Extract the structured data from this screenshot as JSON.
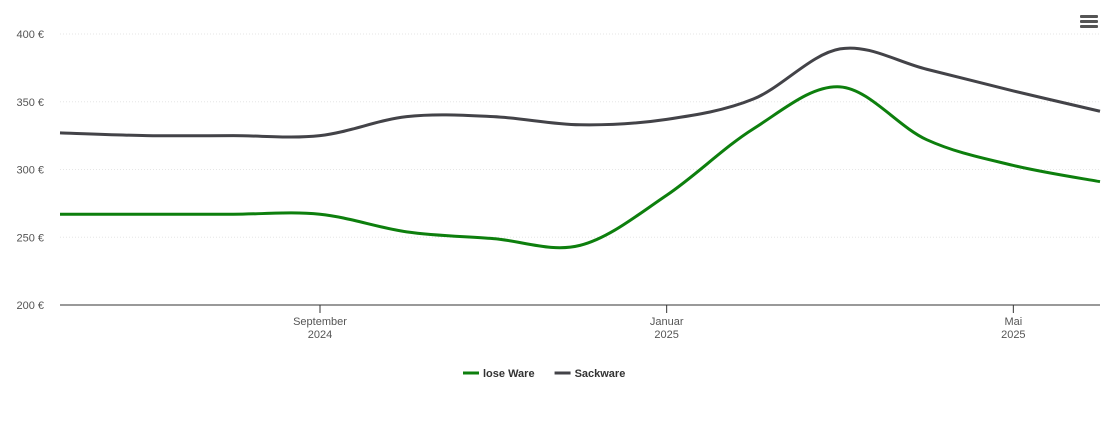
{
  "chart_data": {
    "type": "line",
    "x": [
      "2024-06",
      "2024-07",
      "2024-08",
      "2024-09",
      "2024-10",
      "2024-11",
      "2024-12",
      "2025-01",
      "2025-02",
      "2025-03",
      "2025-04",
      "2025-05",
      "2025-06"
    ],
    "xlim": [
      "2024-06",
      "2025-06"
    ],
    "xticks": [
      {
        "value": "2024-09",
        "label": "September 2024"
      },
      {
        "value": "2025-01",
        "label": "Januar 2025"
      },
      {
        "value": "2025-05",
        "label": "Mai 2025"
      }
    ],
    "ylim": [
      200,
      400
    ],
    "yticks": [
      {
        "value": 200,
        "label": "200 €"
      },
      {
        "value": 250,
        "label": "250 €"
      },
      {
        "value": 300,
        "label": "300 €"
      },
      {
        "value": 350,
        "label": "350 €"
      },
      {
        "value": 400,
        "label": "400 €"
      }
    ],
    "grid": true,
    "legend": "bottom",
    "series": [
      {
        "name": "lose Ware",
        "color": "#0d7f0d",
        "values": [
          267,
          267,
          267,
          267,
          254,
          249,
          244,
          281,
          330,
          361,
          322,
          303,
          291
        ]
      },
      {
        "name": "Sackware",
        "color": "#434348",
        "values": [
          327,
          325,
          325,
          325,
          339,
          339,
          333,
          337,
          352,
          389,
          374,
          358,
          343
        ]
      }
    ]
  }
}
